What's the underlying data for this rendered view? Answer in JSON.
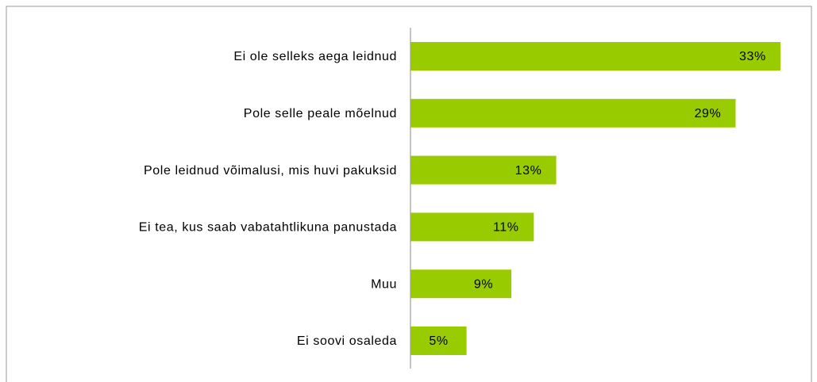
{
  "chart_data": {
    "type": "bar",
    "orientation": "horizontal",
    "categories": [
      "Ei ole selleks aega leidnud",
      "Pole selle peale mõelnud",
      "Pole leidnud võimalusi, mis huvi pakuksid",
      "Ei tea, kus saab vabatahtlikuna panustada",
      "Muu",
      "Ei soovi osaleda"
    ],
    "values": [
      33,
      29,
      13,
      11,
      9,
      5
    ],
    "value_labels": [
      "33%",
      "29%",
      "13%",
      "11%",
      "9%",
      "5%"
    ],
    "color": "#99cc00"
  }
}
